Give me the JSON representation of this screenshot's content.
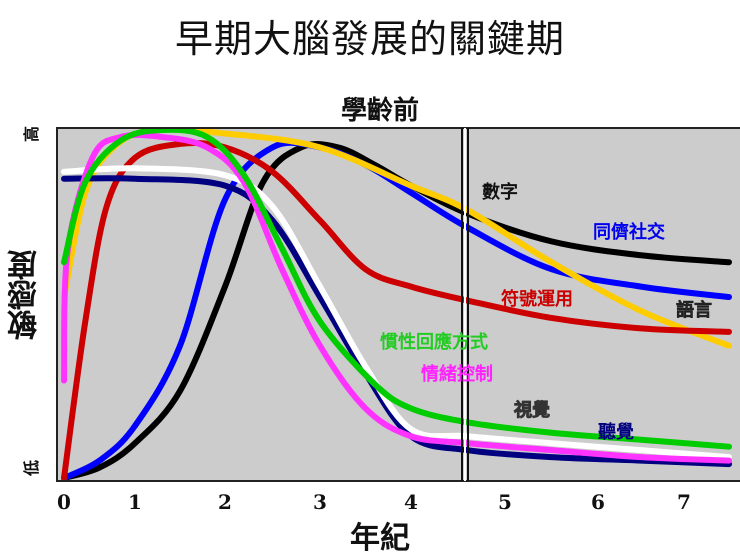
{
  "chart_data": {
    "type": "line",
    "title": "早期大腦發展的關鍵期",
    "subtitle": "學齡前",
    "xlabel": "年紀",
    "ylabel": "敏感度",
    "y_high_label": "高",
    "y_low_label": "低",
    "x_ticks": [
      "0",
      "1",
      "2",
      "3",
      "4",
      "5",
      "6",
      "7"
    ],
    "xlim": [
      0,
      7.5
    ],
    "ylim": [
      0,
      1
    ],
    "grid": false,
    "background": "#cccccc",
    "divider_x": 4.6,
    "divider_note": "學齡前 (preschool) region ends at vertical double line",
    "series": [
      {
        "name": "視覺",
        "color": "#ffffff",
        "x": [
          0,
          1,
          2,
          2.5,
          3,
          3.5,
          4,
          4.6,
          5.5,
          6.5,
          7.5
        ],
        "y": [
          0.88,
          0.89,
          0.87,
          0.78,
          0.55,
          0.32,
          0.14,
          0.12,
          0.1,
          0.08,
          0.06
        ]
      },
      {
        "name": "聽覺",
        "color": "#000080",
        "x": [
          0,
          1,
          2,
          2.5,
          3,
          3.5,
          4,
          4.6,
          5.5,
          6.5,
          7.5
        ],
        "y": [
          0.86,
          0.86,
          0.84,
          0.74,
          0.52,
          0.3,
          0.12,
          0.08,
          0.06,
          0.05,
          0.04
        ]
      },
      {
        "name": "慣性回應方式",
        "color": "#00cc00",
        "x": [
          0,
          0.3,
          0.8,
          1.3,
          1.8,
          2.2,
          2.6,
          3,
          3.6,
          4,
          4.6,
          5.5,
          6.5,
          7.5
        ],
        "y": [
          0.62,
          0.85,
          0.97,
          1.0,
          0.98,
          0.87,
          0.66,
          0.45,
          0.27,
          0.2,
          0.16,
          0.13,
          0.11,
          0.09
        ]
      },
      {
        "name": "情緒控制",
        "color": "#ff33ff",
        "x": [
          0,
          0.05,
          0.4,
          0.8,
          1.3,
          1.8,
          2.2,
          2.6,
          3,
          3.5,
          4,
          4.6,
          5.5,
          6.5,
          7.5
        ],
        "y": [
          0.28,
          0.65,
          0.92,
          0.98,
          0.98,
          0.95,
          0.85,
          0.6,
          0.38,
          0.2,
          0.12,
          0.1,
          0.08,
          0.06,
          0.05
        ]
      },
      {
        "name": "語言",
        "color": "#ffcc00",
        "x": [
          0,
          0.3,
          0.7,
          1.2,
          2,
          3,
          4,
          4.6,
          5.5,
          6.5,
          7.5
        ],
        "y": [
          0.52,
          0.82,
          0.95,
          1.0,
          0.99,
          0.95,
          0.84,
          0.77,
          0.62,
          0.48,
          0.38
        ]
      },
      {
        "name": "符號運用",
        "color": "#cc0000",
        "x": [
          0,
          0.3,
          0.6,
          1,
          1.5,
          2,
          2.5,
          3,
          3.5,
          4,
          4.6,
          5.5,
          6.5,
          7.5
        ],
        "y": [
          0.0,
          0.45,
          0.78,
          0.92,
          0.96,
          0.95,
          0.88,
          0.74,
          0.6,
          0.55,
          0.51,
          0.46,
          0.43,
          0.42
        ]
      },
      {
        "name": "同儕社交",
        "color": "#0000ff",
        "x": [
          0,
          0.5,
          1,
          1.5,
          2,
          2.5,
          3,
          3.5,
          4,
          4.6,
          5.5,
          6.5,
          7.5
        ],
        "y": [
          0.0,
          0.05,
          0.15,
          0.38,
          0.8,
          0.95,
          0.95,
          0.9,
          0.82,
          0.72,
          0.6,
          0.55,
          0.52
        ]
      },
      {
        "name": "數字",
        "color": "#000000",
        "x": [
          0,
          0.5,
          1,
          1.5,
          2,
          2.4,
          2.8,
          3.2,
          3.6,
          4,
          4.6,
          5.5,
          6.5,
          7.5
        ],
        "y": [
          0.0,
          0.03,
          0.1,
          0.25,
          0.55,
          0.85,
          0.95,
          0.95,
          0.9,
          0.84,
          0.76,
          0.68,
          0.64,
          0.62
        ]
      }
    ],
    "annotations": [
      {
        "text": "數字",
        "color": "#111111"
      },
      {
        "text": "同儕社交",
        "color": "#0000ee"
      },
      {
        "text": "符號運用",
        "color": "#cc0000"
      },
      {
        "text": "語言",
        "color": "#555533"
      },
      {
        "text": "慣性回應方式",
        "color": "#22cc22"
      },
      {
        "text": "情緒控制",
        "color": "#ff22ff"
      },
      {
        "text": "視覺",
        "color": "#ffffff"
      },
      {
        "text": "聽覺",
        "color": "#000080"
      }
    ]
  }
}
